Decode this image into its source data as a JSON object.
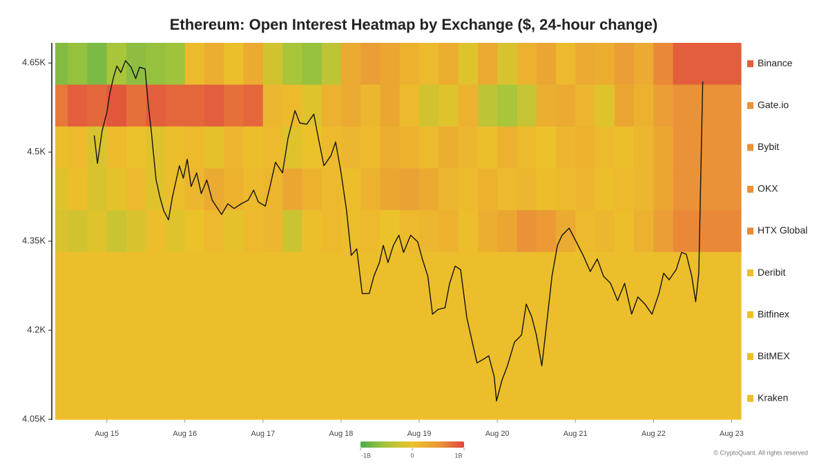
{
  "chart_data": {
    "type": "heatmap",
    "title": "Ethereum: Open Interest Heatmap by Exchange ($, 24-hour change)",
    "footer": "© CryptoQuant. All rights reserved",
    "bins": [
      14.34,
      14.5,
      14.75,
      15,
      15.25,
      15.5,
      15.75,
      16,
      16.25,
      16.5,
      16.75,
      17,
      17.25,
      17.5,
      17.75,
      18,
      18.25,
      18.5,
      18.75,
      19,
      19.25,
      19.5,
      19.75,
      20,
      20.25,
      20.5,
      20.75,
      21,
      21.25,
      21.5,
      21.75,
      22,
      22.25,
      22.5,
      22.75,
      23,
      23.12
    ],
    "rows": [
      {
        "name": "Binance",
        "values": [
          -0.7,
          -0.6,
          -0.75,
          -0.5,
          -0.65,
          -0.6,
          -0.55,
          0.1,
          0.25,
          0.05,
          0.3,
          -0.2,
          -0.5,
          -0.6,
          -0.35,
          0.3,
          0.45,
          0.35,
          0.2,
          0.1,
          0.25,
          -0.1,
          0.3,
          -0.15,
          0.2,
          0.35,
          0.1,
          0.3,
          0.25,
          0.45,
          0.3,
          0.6,
          0.85,
          0.85,
          0.85,
          0.85
        ]
      },
      {
        "name": "Gate.io",
        "values": [
          0.7,
          0.85,
          0.8,
          0.9,
          0.75,
          0.85,
          0.8,
          0.8,
          0.85,
          0.75,
          0.8,
          0.15,
          0.1,
          -0.1,
          0.2,
          0.3,
          0.15,
          0.35,
          0.1,
          -0.2,
          -0.1,
          0.2,
          -0.35,
          -0.5,
          -0.3,
          0.25,
          0.3,
          0.15,
          -0.1,
          0.35,
          0.2,
          0.45,
          0.55,
          0.55,
          0.55,
          0.55
        ]
      },
      {
        "name": "Bybit",
        "values": [
          0.05,
          0.1,
          -0.15,
          0.1,
          0.0,
          -0.1,
          0.05,
          0.1,
          -0.05,
          0.15,
          0.05,
          0.1,
          -0.1,
          0.0,
          0.1,
          0.15,
          0.1,
          0.25,
          0.2,
          0.1,
          0.25,
          0.15,
          0.05,
          0.2,
          0.1,
          0.0,
          0.15,
          0.2,
          0.1,
          0.05,
          0.15,
          0.35,
          0.55,
          0.55,
          0.55,
          0.55
        ]
      },
      {
        "name": "OKX",
        "values": [
          -0.1,
          0.05,
          -0.15,
          -0.05,
          0.1,
          -0.1,
          0.05,
          0.15,
          0.3,
          0.2,
          0.1,
          0.15,
          0.35,
          0.2,
          0.1,
          0.05,
          0.2,
          0.35,
          0.4,
          0.3,
          0.15,
          0.1,
          0.2,
          0.1,
          0.15,
          0.05,
          0.1,
          0.15,
          0.05,
          0.1,
          0.15,
          0.35,
          0.55,
          0.55,
          0.55,
          0.55
        ]
      },
      {
        "name": "HTX Global",
        "values": [
          -0.15,
          -0.2,
          -0.1,
          -0.25,
          -0.15,
          0.05,
          -0.1,
          0.0,
          0.1,
          -0.05,
          0.1,
          0.15,
          -0.25,
          0.05,
          0.1,
          0.05,
          0.1,
          0.0,
          0.1,
          0.15,
          0.2,
          0.05,
          0.25,
          0.35,
          0.55,
          0.5,
          0.3,
          0.1,
          0.15,
          0.05,
          0.2,
          0.45,
          0.6,
          0.6,
          0.6,
          0.6
        ]
      },
      {
        "name": "Deribit",
        "values": [
          0.05,
          0.05,
          0.05,
          0.05,
          0.05,
          0.05,
          0.05,
          0.05,
          0.05,
          0.05,
          0.05,
          0.05,
          0.05,
          0.05,
          0.05,
          0.05,
          0.05,
          0.05,
          0.05,
          0.05,
          0.05,
          0.05,
          0.05,
          0.05,
          0.05,
          0.05,
          0.05,
          0.05,
          0.05,
          0.05,
          0.05,
          0.05,
          0.05,
          0.05,
          0.05,
          0.05
        ]
      },
      {
        "name": "Bitfinex",
        "values": [
          0.05,
          0.05,
          0.05,
          0.05,
          0.05,
          0.05,
          0.05,
          0.05,
          0.05,
          0.05,
          0.05,
          0.05,
          0.05,
          0.05,
          0.05,
          0.05,
          0.05,
          0.05,
          0.05,
          0.05,
          0.05,
          0.05,
          0.05,
          0.05,
          0.05,
          0.05,
          0.05,
          0.05,
          0.05,
          0.05,
          0.05,
          0.05,
          0.05,
          0.05,
          0.05,
          0.05
        ]
      },
      {
        "name": "BitMEX",
        "values": [
          0.05,
          0.05,
          0.05,
          0.05,
          0.05,
          0.05,
          0.05,
          0.05,
          0.05,
          0.05,
          0.05,
          0.05,
          0.05,
          0.05,
          0.05,
          0.05,
          0.05,
          0.05,
          0.05,
          0.05,
          0.05,
          0.05,
          0.05,
          0.05,
          0.05,
          0.05,
          0.05,
          0.05,
          0.05,
          0.05,
          0.05,
          0.05,
          0.05,
          0.05,
          0.05,
          0.05
        ]
      },
      {
        "name": "Kraken",
        "values": [
          0.05,
          0.05,
          0.05,
          0.05,
          0.05,
          0.05,
          0.05,
          0.05,
          0.05,
          0.05,
          0.05,
          0.05,
          0.05,
          0.05,
          0.05,
          0.05,
          0.05,
          0.05,
          0.05,
          0.05,
          0.05,
          0.05,
          0.05,
          0.05,
          0.05,
          0.05,
          0.05,
          0.05,
          0.05,
          0.05,
          0.05,
          0.05,
          0.05,
          0.05,
          0.05,
          0.05
        ]
      }
    ],
    "colorbar": {
      "colors": [
        "#4caf50",
        "#a9c53a",
        "#ecc22a",
        "#eb9a36",
        "#e0453e"
      ],
      "ticks": [
        {
          "value": -1,
          "label": "-1B"
        },
        0,
        {
          "value": 1,
          "label": "1B"
        }
      ]
    },
    "line": {
      "color": "#111111",
      "x": [
        14.84,
        14.88,
        14.94,
        15.0,
        15.04,
        15.09,
        15.13,
        15.18,
        15.24,
        15.31,
        15.37,
        15.42,
        15.49,
        15.53,
        15.57,
        15.63,
        15.68,
        15.73,
        15.79,
        15.84,
        15.88,
        15.93,
        15.98,
        16.03,
        16.08,
        16.15,
        16.21,
        16.28,
        16.35,
        16.41,
        16.47,
        16.55,
        16.63,
        16.72,
        16.81,
        16.88,
        16.94,
        17.03,
        17.09,
        17.16,
        17.25,
        17.32,
        17.41,
        17.47,
        17.56,
        17.65,
        17.71,
        17.78,
        17.87,
        17.93,
        18.0,
        18.07,
        18.13,
        18.2,
        18.27,
        18.36,
        18.42,
        18.49,
        18.54,
        18.6,
        18.67,
        18.74,
        18.8,
        18.89,
        18.98,
        19.04,
        19.11,
        19.17,
        19.24,
        19.33,
        19.39,
        19.46,
        19.53,
        19.61,
        19.68,
        19.74,
        19.82,
        19.89,
        19.96,
        19.99,
        20.06,
        20.13,
        20.22,
        20.31,
        20.37,
        20.44,
        20.5,
        20.57,
        20.63,
        20.7,
        20.77,
        20.83,
        20.92,
        21.01,
        21.1,
        21.19,
        21.28,
        21.36,
        21.45,
        21.54,
        21.63,
        21.72,
        21.8,
        21.89,
        21.98,
        22.07,
        22.13,
        22.2,
        22.29,
        22.36,
        22.42,
        22.49,
        22.54,
        22.58,
        22.63
      ],
      "values": [
        4528,
        4481,
        4536,
        4566,
        4600,
        4628,
        4645,
        4634,
        4654,
        4643,
        4624,
        4643,
        4640,
        4581,
        4535,
        4454,
        4424,
        4401,
        4386,
        4424,
        4448,
        4477,
        4456,
        4488,
        4442,
        4465,
        4430,
        4453,
        4419,
        4407,
        4395,
        4413,
        4405,
        4413,
        4419,
        4436,
        4416,
        4409,
        4442,
        4483,
        4465,
        4523,
        4570,
        4549,
        4547,
        4564,
        4523,
        4477,
        4494,
        4517,
        4465,
        4401,
        4326,
        4337,
        4262,
        4262,
        4291,
        4314,
        4343,
        4314,
        4343,
        4360,
        4331,
        4360,
        4349,
        4320,
        4291,
        4227,
        4235,
        4238,
        4279,
        4308,
        4302,
        4221,
        4180,
        4145,
        4151,
        4157,
        4122,
        4081,
        4116,
        4140,
        4180,
        4192,
        4244,
        4223,
        4192,
        4140,
        4209,
        4291,
        4343,
        4360,
        4372,
        4349,
        4326,
        4299,
        4320,
        4291,
        4279,
        4250,
        4279,
        4227,
        4256,
        4244,
        4227,
        4262,
        4296,
        4285,
        4302,
        4331,
        4328,
        4291,
        4248,
        4296,
        4619
      ]
    },
    "xlim": [
      14.34,
      23.12
    ],
    "xticks": [
      {
        "value": 15,
        "label": "Aug 15"
      },
      {
        "value": 16,
        "label": "Aug 16"
      },
      {
        "value": 17,
        "label": "Aug 17"
      },
      {
        "value": 18,
        "label": "Aug 18"
      },
      {
        "value": 19,
        "label": "Aug 19"
      },
      {
        "value": 20,
        "label": "Aug 20"
      },
      {
        "value": 21,
        "label": "Aug 21"
      },
      {
        "value": 22,
        "label": "Aug 22"
      },
      {
        "value": 23,
        "label": "Aug 23"
      }
    ],
    "ylim": [
      4050,
      4684
    ],
    "yticks": [
      {
        "value": 4050,
        "label": "4.05K"
      },
      {
        "value": 4200,
        "label": "4.2K"
      },
      {
        "value": 4350,
        "label": "4.35K"
      },
      {
        "value": 4500,
        "label": "4.5K"
      },
      {
        "value": 4650,
        "label": "4.65K"
      }
    ]
  }
}
